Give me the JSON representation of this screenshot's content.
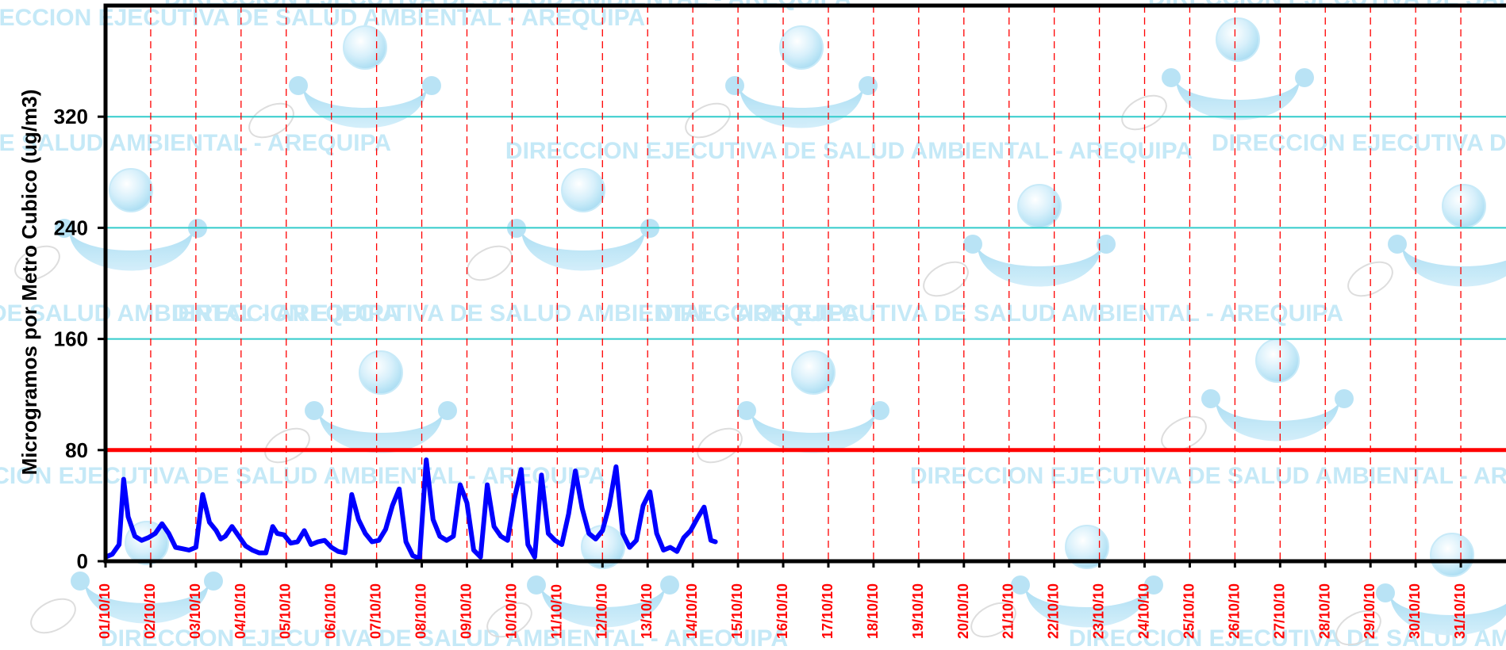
{
  "watermark": {
    "text": "DIRECCION EJECUTIVA DE SALUD AMBIENTAL - AREQUIPA",
    "logo_icon": "person-arms-logo-icon",
    "color": "#c5e9f7"
  },
  "chart_data": {
    "type": "line",
    "title": "",
    "xlabel": "",
    "ylabel": "Microgramos por Metro Cubico (ug/m3)",
    "ylim": [
      0,
      400
    ],
    "yticks": [
      0,
      80,
      160,
      240,
      320
    ],
    "grid": {
      "horizontal": true,
      "horizontal_color": "#33cccc",
      "vertical": true,
      "vertical_color": "#ff0000",
      "vertical_style": "dashed"
    },
    "categories": [
      "01/10/10",
      "02/10/10",
      "03/10/10",
      "04/10/10",
      "05/10/10",
      "06/10/10",
      "07/10/10",
      "08/10/10",
      "09/10/10",
      "10/10/10",
      "11/10/10",
      "12/10/10",
      "13/10/10",
      "14/10/10",
      "15/10/10",
      "16/10/10",
      "17/10/10",
      "18/10/10",
      "19/10/10",
      "20/10/10",
      "21/10/10",
      "22/10/10",
      "23/10/10",
      "24/10/10",
      "25/10/10",
      "26/10/10",
      "27/10/10",
      "28/10/10",
      "29/10/10",
      "30/10/10",
      "31/10/10"
    ],
    "xlim_days": [
      0,
      31
    ],
    "limit_line": {
      "value": 80,
      "color": "#ff0000"
    },
    "series": [
      {
        "color": "#0000ff",
        "x": [
          0.0,
          0.15,
          0.3,
          0.4,
          0.5,
          0.65,
          0.8,
          0.95,
          1.1,
          1.25,
          1.4,
          1.55,
          1.7,
          1.85,
          2.0,
          2.15,
          2.3,
          2.45,
          2.55,
          2.65,
          2.8,
          2.95,
          3.1,
          3.25,
          3.4,
          3.55,
          3.7,
          3.8,
          3.95,
          4.1,
          4.25,
          4.4,
          4.55,
          4.7,
          4.85,
          5.0,
          5.15,
          5.3,
          5.45,
          5.6,
          5.75,
          5.9,
          6.05,
          6.2,
          6.35,
          6.5,
          6.65,
          6.8,
          6.95,
          7.1,
          7.25,
          7.4,
          7.55,
          7.7,
          7.85,
          8.0,
          8.15,
          8.3,
          8.45,
          8.6,
          8.75,
          8.9,
          9.05,
          9.2,
          9.35,
          9.5,
          9.65,
          9.8,
          9.95,
          10.1,
          10.25,
          10.4,
          10.55,
          10.7,
          10.85,
          11.0,
          11.15,
          11.3,
          11.45,
          11.6,
          11.75,
          11.9,
          12.05,
          12.2,
          12.35,
          12.5,
          12.65,
          12.8,
          12.95,
          13.1,
          13.25,
          13.4,
          13.5
        ],
        "y": [
          3,
          5,
          12,
          59,
          32,
          18,
          15,
          17,
          20,
          27,
          20,
          10,
          9,
          8,
          10,
          48,
          28,
          22,
          16,
          18,
          25,
          18,
          11,
          8,
          6,
          6,
          25,
          20,
          19,
          13,
          14,
          22,
          12,
          14,
          15,
          10,
          7,
          6,
          48,
          30,
          20,
          14,
          15,
          23,
          40,
          52,
          14,
          4,
          2,
          73,
          30,
          18,
          15,
          18,
          55,
          42,
          8,
          3,
          55,
          25,
          18,
          15,
          45,
          66,
          12,
          3,
          62,
          20,
          15,
          12,
          34,
          65,
          38,
          20,
          16,
          22,
          40,
          68,
          20,
          10,
          15,
          40,
          50,
          20,
          8,
          10,
          7,
          17,
          22,
          31,
          39,
          15,
          14
        ]
      }
    ]
  }
}
